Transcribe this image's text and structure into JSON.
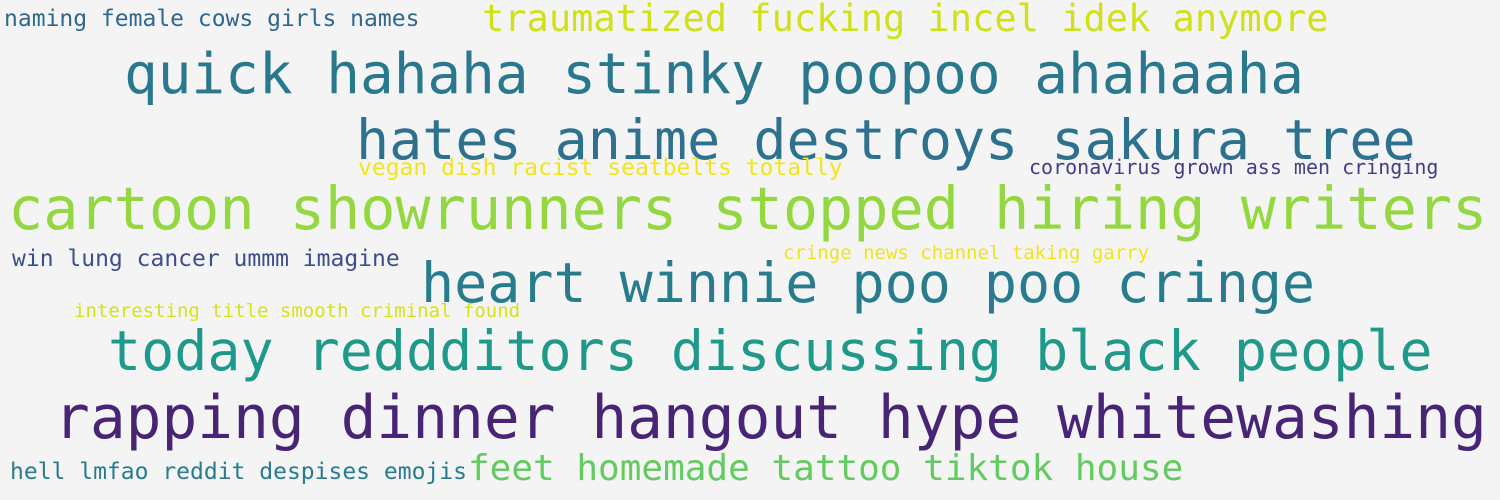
{
  "word_cloud": {
    "phrases": [
      {
        "text": "naming female cows girls names",
        "color": "#30678d"
      },
      {
        "text": "traumatized fucking incel idek anymore",
        "color": "#d0e11c"
      },
      {
        "text": "quick hahaha stinky poopoo ahahaaha",
        "color": "#2a788e"
      },
      {
        "text": "hates anime destroys sakura tree",
        "color": "#2d718e"
      },
      {
        "text": "vegan dish racist seatbelts totally",
        "color": "#f2e51d"
      },
      {
        "text": "coronavirus grown ass men cringing",
        "color": "#433e85"
      },
      {
        "text": "cartoon showrunners stopped hiring writers",
        "color": "#93d741"
      },
      {
        "text": "win lung cancer ummm imagine",
        "color": "#3c4f8a"
      },
      {
        "text": "cringe news channel taking garry",
        "color": "#f0e41f"
      },
      {
        "text": "heart winnie poo poo cringe",
        "color": "#287c8e"
      },
      {
        "text": "interesting title smooth criminal found",
        "color": "#d6e21a"
      },
      {
        "text": "today reddditors discussing black people",
        "color": "#1f998a"
      },
      {
        "text": "rapping dinner hangout hype whitewashing",
        "color": "#482475"
      },
      {
        "text": "hell lmfao reddit despises emojis",
        "color": "#2a7b8e"
      },
      {
        "text": "feet homemade tattoo tiktok house",
        "color": "#63cb5f"
      }
    ]
  }
}
